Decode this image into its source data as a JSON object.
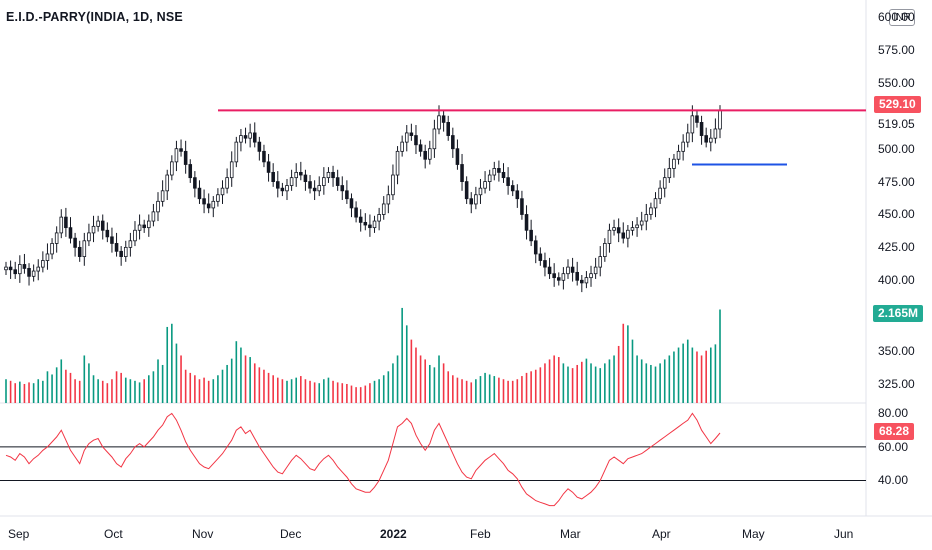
{
  "header": {
    "title": "E.I.D.-PARRY(INDIA, 1D, NSE",
    "currency": "INR"
  },
  "price_axis": {
    "ticks": [
      "600.00",
      "575.00",
      "550.00",
      "519.05",
      "500.00",
      "475.00",
      "450.00",
      "425.00",
      "400.00"
    ],
    "last_price": "529.10",
    "last_price_color": "#f7525f",
    "resistance_color": "#e91e63",
    "support_color": "#1e53e5"
  },
  "volume_axis": {
    "ticks": [
      "350.00",
      "325.00"
    ],
    "last_volume": "2.165M",
    "last_volume_color": "#22ab94"
  },
  "rsi_axis": {
    "ticks": [
      "80.00",
      "60.00",
      "40.00"
    ],
    "last_rsi": "68.28",
    "line_color": "#f23645"
  },
  "time_axis": {
    "labels": [
      "Sep",
      "Oct",
      "Nov",
      "Dec",
      "2022",
      "Feb",
      "Mar",
      "Apr",
      "May",
      "Jun"
    ]
  },
  "colors": {
    "up": "#089981",
    "down": "#f23645",
    "candle_body": "#131722",
    "grid": "#e0e3eb"
  },
  "chart_data": {
    "type": "line",
    "symbol": "E.I.D.-PARRY(INDIA",
    "interval": "1D",
    "exchange": "NSE",
    "price_close": [
      410,
      408,
      405,
      412,
      409,
      403,
      407,
      410,
      415,
      420,
      428,
      436,
      448,
      440,
      432,
      425,
      418,
      430,
      436,
      441,
      445,
      438,
      433,
      428,
      422,
      418,
      425,
      430,
      438,
      442,
      440,
      445,
      452,
      460,
      468,
      480,
      490,
      500,
      498,
      488,
      478,
      470,
      462,
      458,
      455,
      460,
      465,
      470,
      478,
      490,
      505,
      510,
      508,
      512,
      505,
      498,
      490,
      482,
      475,
      470,
      468,
      472,
      478,
      482,
      480,
      475,
      470,
      468,
      472,
      478,
      482,
      478,
      472,
      468,
      462,
      455,
      448,
      444,
      442,
      440,
      445,
      450,
      458,
      465,
      480,
      498,
      505,
      512,
      510,
      503,
      498,
      492,
      500,
      515,
      525,
      520,
      510,
      500,
      488,
      475,
      462,
      458,
      465,
      470,
      475,
      480,
      485,
      482,
      478,
      472,
      468,
      462,
      450,
      438,
      430,
      420,
      415,
      410,
      405,
      402,
      400,
      405,
      410,
      406,
      400,
      398,
      402,
      405,
      410,
      418,
      428,
      438,
      440,
      436,
      432,
      438,
      440,
      442,
      445,
      450,
      455,
      462,
      470,
      478,
      485,
      492,
      498,
      505,
      512,
      525,
      520,
      510,
      505,
      508,
      515,
      529.1
    ],
    "volume": [
      30,
      28,
      25,
      27,
      24,
      26,
      25,
      30,
      28,
      40,
      36,
      45,
      55,
      42,
      38,
      30,
      28,
      60,
      50,
      35,
      30,
      28,
      25,
      30,
      40,
      38,
      32,
      30,
      28,
      26,
      30,
      35,
      40,
      55,
      48,
      96,
      100,
      75,
      60,
      42,
      38,
      35,
      30,
      32,
      28,
      30,
      35,
      42,
      48,
      56,
      78,
      70,
      60,
      58,
      50,
      45,
      42,
      38,
      35,
      32,
      30,
      28,
      30,
      32,
      34,
      30,
      28,
      26,
      25,
      30,
      32,
      28,
      26,
      25,
      24,
      22,
      20,
      20,
      22,
      25,
      28,
      30,
      35,
      40,
      50,
      60,
      120,
      98,
      80,
      70,
      60,
      55,
      48,
      45,
      60,
      50,
      40,
      35,
      32,
      30,
      28,
      26,
      30,
      34,
      38,
      36,
      34,
      32,
      30,
      28,
      28,
      30,
      34,
      38,
      40,
      42,
      45,
      50,
      55,
      60,
      58,
      50,
      46,
      44,
      48,
      52,
      56,
      50,
      46,
      44,
      50,
      55,
      60,
      72,
      100,
      98,
      80,
      60,
      55,
      50,
      48,
      46,
      50,
      55,
      60,
      65,
      70,
      75,
      80,
      70,
      65,
      60,
      66,
      70,
      74,
      118
    ],
    "rsi": [
      55,
      54,
      52,
      56,
      54,
      50,
      53,
      55,
      58,
      60,
      63,
      66,
      70,
      64,
      58,
      54,
      50,
      58,
      62,
      64,
      65,
      60,
      57,
      54,
      50,
      48,
      53,
      56,
      60,
      62,
      60,
      63,
      66,
      70,
      73,
      78,
      80,
      76,
      70,
      63,
      58,
      54,
      50,
      48,
      47,
      50,
      53,
      56,
      60,
      64,
      70,
      72,
      68,
      70,
      65,
      60,
      56,
      52,
      48,
      45,
      44,
      48,
      52,
      55,
      53,
      50,
      47,
      46,
      50,
      53,
      55,
      52,
      48,
      45,
      42,
      38,
      35,
      34,
      33,
      33,
      36,
      40,
      46,
      52,
      62,
      72,
      74,
      77,
      74,
      67,
      62,
      58,
      62,
      70,
      74,
      68,
      62,
      56,
      50,
      45,
      42,
      41,
      46,
      49,
      52,
      54,
      56,
      53,
      50,
      46,
      44,
      41,
      36,
      32,
      30,
      28,
      27,
      26,
      25,
      25,
      28,
      32,
      35,
      33,
      30,
      29,
      31,
      33,
      36,
      40,
      46,
      52,
      54,
      52,
      50,
      53,
      54,
      55,
      56,
      58,
      60,
      62,
      64,
      66,
      68,
      70,
      72,
      74,
      76,
      80,
      76,
      70,
      66,
      62,
      65,
      68.28
    ],
    "resistance_level": 529.1,
    "support_level": 488,
    "price_ylim": [
      385,
      610
    ],
    "volume_ylim": [
      0,
      130
    ],
    "rsi_ylim": [
      20,
      85
    ],
    "rsi_bands": [
      40,
      60
    ],
    "grid": false
  }
}
